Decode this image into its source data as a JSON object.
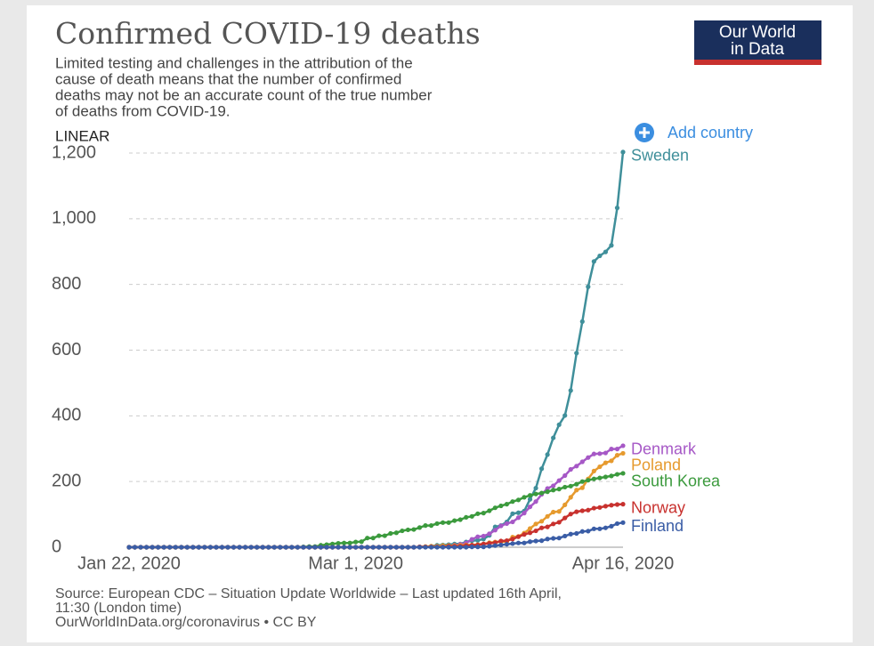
{
  "chart_data": {
    "type": "line",
    "title": "Confirmed COVID-19 deaths",
    "subtitle": [
      "Limited testing and challenges in the attribution of the",
      "cause of death means that the number of confirmed",
      "deaths may not be an accurate count of the true number",
      "of deaths from COVID-19."
    ],
    "scale_label": "LINEAR",
    "button": "Add country",
    "logo": [
      "Our World",
      "in Data"
    ],
    "source": [
      "Source: European CDC – Situation Update Worldwide – Last updated 16th April,",
      "11:30 (London time)",
      "OurWorldInData.org/coronavirus • CC BY"
    ],
    "categories": [
      "Jan 22, 2020",
      null,
      null,
      null,
      null,
      null,
      null,
      null,
      null,
      null,
      null,
      null,
      null,
      null,
      null,
      null,
      null,
      null,
      null,
      null,
      null,
      null,
      null,
      null,
      null,
      null,
      null,
      null,
      null,
      null,
      null,
      null,
      null,
      null,
      null,
      null,
      null,
      null,
      null,
      "Mar 1, 2020",
      null,
      null,
      null,
      null,
      null,
      null,
      null,
      null,
      null,
      null,
      null,
      null,
      null,
      null,
      null,
      null,
      null,
      null,
      null,
      null,
      null,
      null,
      null,
      null,
      null,
      null,
      null,
      null,
      null,
      null,
      null,
      null,
      null,
      null,
      null,
      null,
      null,
      null,
      null,
      null,
      null,
      null,
      null,
      null,
      null,
      "Apr 16, 2020"
    ],
    "ylim": [
      0,
      1200
    ],
    "yticks": [
      0,
      200,
      400,
      600,
      800,
      {
        "value": 1000,
        "label": "1,000"
      },
      {
        "value": 1200,
        "label": "1,200"
      }
    ],
    "grid": true,
    "series": [
      {
        "name": "Sweden",
        "color": "#3f8f9a",
        "values": [
          0,
          0,
          0,
          0,
          0,
          0,
          0,
          0,
          0,
          0,
          0,
          0,
          0,
          0,
          0,
          0,
          0,
          0,
          0,
          0,
          0,
          0,
          0,
          0,
          0,
          0,
          0,
          0,
          0,
          0,
          0,
          0,
          0,
          0,
          0,
          0,
          0,
          0,
          0,
          0,
          0,
          0,
          0,
          0,
          0,
          0,
          0,
          0,
          0,
          0,
          1,
          1,
          3,
          6,
          7,
          8,
          10,
          10,
          16,
          20,
          21,
          25,
          36,
          62,
          66,
          77,
          102,
          105,
          110,
          146,
          180,
          239,
          282,
          333,
          373,
          401,
          477,
          591,
          687,
          793,
          870,
          887,
          899,
          919,
          1033,
          1203
        ]
      },
      {
        "name": "Denmark",
        "color": "#a658c6",
        "values": [
          0,
          0,
          0,
          0,
          0,
          0,
          0,
          0,
          0,
          0,
          0,
          0,
          0,
          0,
          0,
          0,
          0,
          0,
          0,
          0,
          0,
          0,
          0,
          0,
          0,
          0,
          0,
          0,
          0,
          0,
          0,
          0,
          0,
          0,
          0,
          0,
          0,
          0,
          0,
          0,
          0,
          0,
          0,
          0,
          0,
          0,
          0,
          0,
          0,
          0,
          1,
          1,
          2,
          3,
          4,
          4,
          6,
          9,
          13,
          24,
          32,
          34,
          41,
          52,
          65,
          72,
          77,
          90,
          104,
          123,
          139,
          161,
          179,
          187,
          203,
          218,
          237,
          247,
          260,
          273,
          284,
          285,
          287,
          299,
          299,
          309
        ]
      },
      {
        "name": "Poland",
        "color": "#e69a2e",
        "values": [
          0,
          0,
          0,
          0,
          0,
          0,
          0,
          0,
          0,
          0,
          0,
          0,
          0,
          0,
          0,
          0,
          0,
          0,
          0,
          0,
          0,
          0,
          0,
          0,
          0,
          0,
          0,
          0,
          0,
          0,
          0,
          0,
          0,
          0,
          0,
          0,
          0,
          0,
          0,
          0,
          0,
          0,
          0,
          0,
          0,
          0,
          0,
          0,
          0,
          0,
          1,
          2,
          3,
          3,
          5,
          5,
          5,
          6,
          7,
          7,
          8,
          10,
          14,
          16,
          17,
          17,
          31,
          33,
          43,
          57,
          71,
          79,
          94,
          107,
          109,
          129,
          152,
          174,
          181,
          208,
          232,
          245,
          257,
          263,
          280,
          286
        ]
      },
      {
        "name": "South Korea",
        "color": "#3b9a3d",
        "values": [
          0,
          0,
          0,
          0,
          0,
          0,
          0,
          0,
          0,
          0,
          0,
          0,
          0,
          0,
          0,
          0,
          0,
          0,
          0,
          0,
          0,
          0,
          0,
          0,
          0,
          0,
          0,
          0,
          0,
          0,
          1,
          2,
          2,
          6,
          8,
          10,
          12,
          13,
          13,
          16,
          17,
          28,
          28,
          35,
          35,
          42,
          44,
          50,
          53,
          54,
          60,
          66,
          66,
          72,
          75,
          75,
          81,
          84,
          91,
          94,
          102,
          104,
          111,
          120,
          126,
          131,
          139,
          144,
          152,
          158,
          162,
          165,
          169,
          174,
          177,
          183,
          186,
          192,
          200,
          204,
          208,
          211,
          214,
          217,
          222,
          225
        ]
      },
      {
        "name": "Norway",
        "color": "#c8312e",
        "values": [
          0,
          0,
          0,
          0,
          0,
          0,
          0,
          0,
          0,
          0,
          0,
          0,
          0,
          0,
          0,
          0,
          0,
          0,
          0,
          0,
          0,
          0,
          0,
          0,
          0,
          0,
          0,
          0,
          0,
          0,
          0,
          0,
          0,
          0,
          0,
          0,
          0,
          0,
          0,
          0,
          0,
          0,
          0,
          0,
          0,
          0,
          0,
          0,
          0,
          0,
          1,
          1,
          1,
          1,
          1,
          3,
          3,
          3,
          5,
          6,
          7,
          10,
          12,
          14,
          19,
          20,
          25,
          32,
          39,
          44,
          50,
          59,
          62,
          71,
          76,
          89,
          101,
          108,
          111,
          113,
          119,
          121,
          125,
          128,
          130,
          131
        ]
      },
      {
        "name": "Finland",
        "color": "#3a5da6",
        "values": [
          0,
          0,
          0,
          0,
          0,
          0,
          0,
          0,
          0,
          0,
          0,
          0,
          0,
          0,
          0,
          0,
          0,
          0,
          0,
          0,
          0,
          0,
          0,
          0,
          0,
          0,
          0,
          0,
          0,
          0,
          0,
          0,
          0,
          0,
          0,
          0,
          0,
          0,
          0,
          0,
          0,
          0,
          0,
          0,
          0,
          0,
          0,
          0,
          0,
          0,
          0,
          0,
          0,
          0,
          0,
          0,
          0,
          0,
          0,
          1,
          1,
          1,
          3,
          5,
          7,
          9,
          11,
          13,
          13,
          17,
          19,
          20,
          25,
          27,
          28,
          34,
          40,
          42,
          48,
          49,
          56,
          56,
          59,
          64,
          72,
          75
        ]
      }
    ]
  }
}
